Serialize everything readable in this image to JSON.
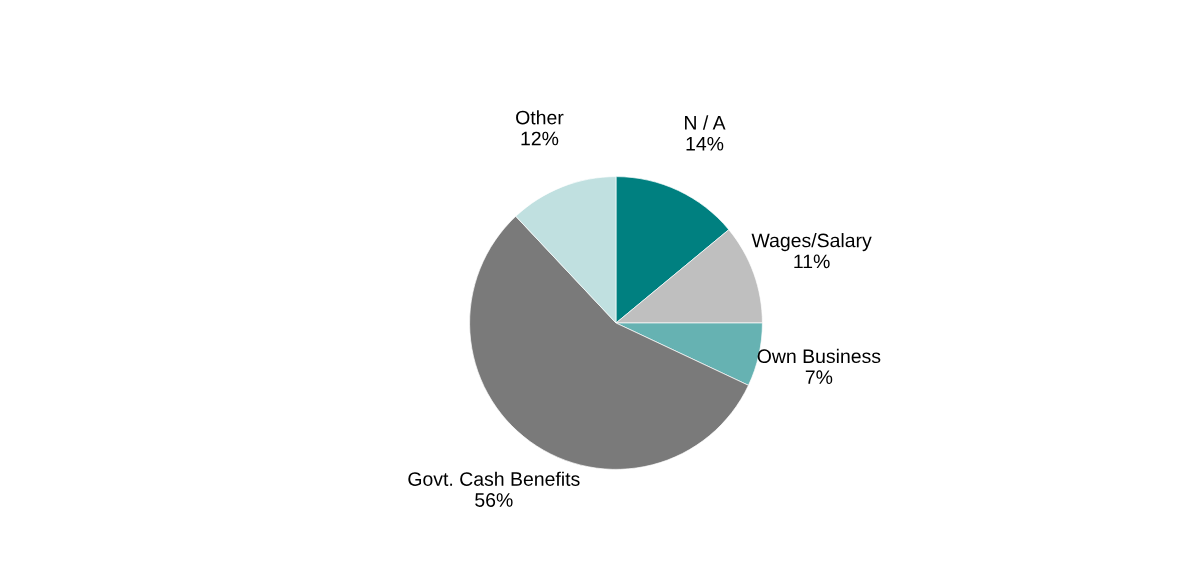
{
  "chart_data": {
    "type": "pie",
    "categories": [
      "N / A",
      "Wages/Salary",
      "Own Business",
      "Govt. Cash Benefits",
      "Other"
    ],
    "values": [
      14,
      11,
      7,
      56,
      12
    ],
    "value_labels": [
      "14%",
      "11%",
      "7%",
      "56%",
      "12%"
    ],
    "colors": [
      "#008080",
      "#bfbfbf",
      "#66b2b2",
      "#7a7a7a",
      "#c0e0e0"
    ],
    "legend": false
  }
}
